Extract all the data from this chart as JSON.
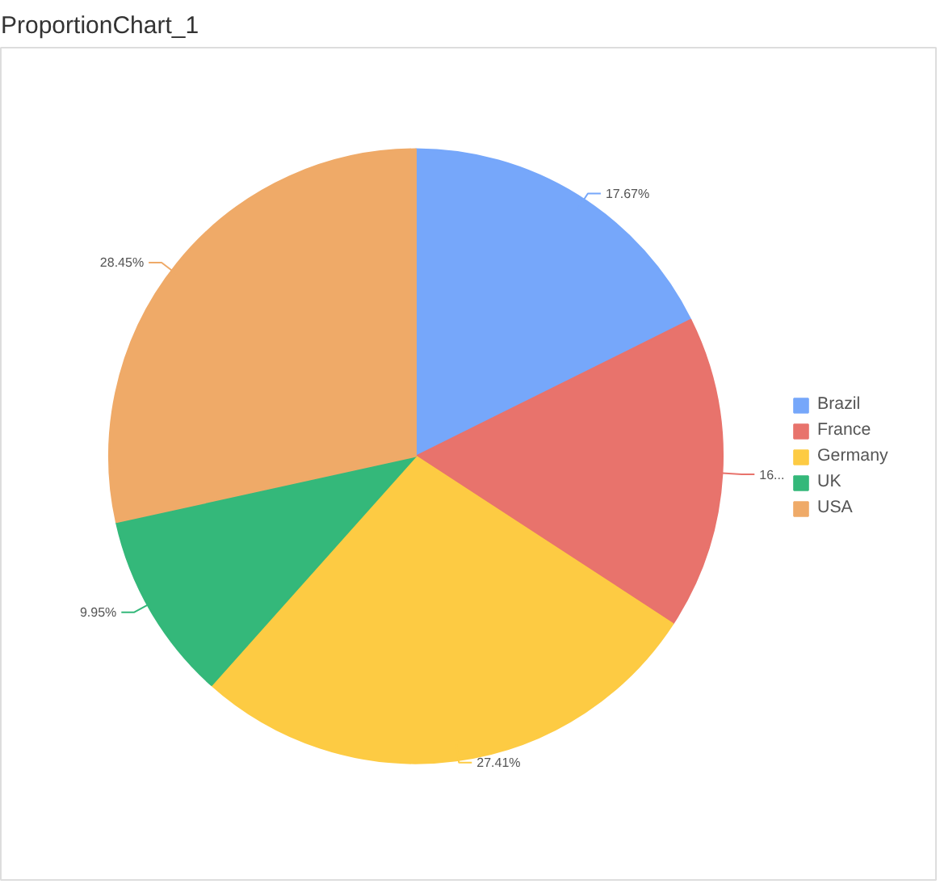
{
  "chart_data": {
    "type": "pie",
    "title": "ProportionChart_1",
    "categories": [
      "Brazil",
      "France",
      "Germany",
      "UK",
      "USA"
    ],
    "values": [
      17.67,
      16.52,
      27.41,
      9.95,
      28.45
    ],
    "colors": [
      "#76a7fa",
      "#e8736c",
      "#fdcb43",
      "#34b87a",
      "#efaa68"
    ],
    "value_labels": [
      "17.67%",
      "16...",
      "27.41%",
      "9.95%",
      "28.45%"
    ],
    "legend": "right"
  }
}
